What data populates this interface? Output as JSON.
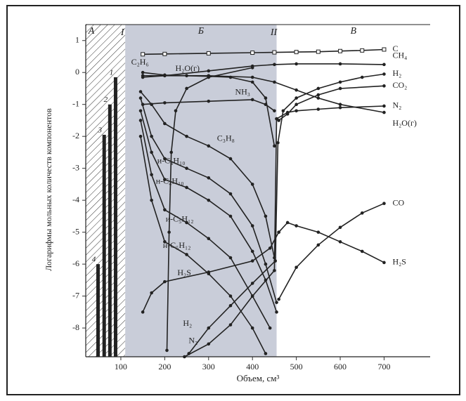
{
  "chart_data": {
    "type": "line",
    "y_label": "Логарифмы мольных количеств компонентов",
    "x_label": "Объем, см³",
    "xlim": [
      20,
      805
    ],
    "ylim": [
      -8.9,
      1.5
    ],
    "xticks": [
      100,
      200,
      300,
      400,
      500,
      600,
      700
    ],
    "yticks": [
      1,
      0,
      -1,
      -2,
      -3,
      -4,
      -5,
      -6,
      -7,
      -8
    ],
    "color": "#222222",
    "regions": [
      {
        "label": "А",
        "xlim": [
          20,
          110
        ],
        "fill": "hatch"
      },
      {
        "label": "Б",
        "xlim": [
          110,
          455
        ],
        "fill": "#c9cdd9"
      },
      {
        "label": "В",
        "xlim": [
          455,
          805
        ],
        "fill": "none"
      }
    ],
    "boundaries": [
      {
        "label": "I",
        "x": 110
      },
      {
        "label": "II",
        "x": 455
      }
    ],
    "bars": {
      "labels": [
        "4",
        "3",
        "2",
        "1"
      ],
      "x": [
        48,
        62,
        75,
        88
      ],
      "values": [
        -6,
        -1.95,
        -1,
        -0.15
      ]
    },
    "series": [
      {
        "name": "C",
        "marker": "square",
        "x": [
          150,
          200,
          300,
          400,
          450,
          500,
          550,
          600,
          650,
          700
        ],
        "values": [
          0.57,
          0.58,
          0.6,
          0.62,
          0.63,
          0.64,
          0.65,
          0.67,
          0.69,
          0.72
        ]
      },
      {
        "name": "CH₄",
        "marker": "dot",
        "x": [
          150,
          200,
          300,
          400,
          450,
          500,
          600,
          700
        ],
        "values": [
          -0.15,
          -0.1,
          0.05,
          0.2,
          0.25,
          0.27,
          0.27,
          0.25
        ]
      },
      {
        "name": "H₂",
        "marker": "dot",
        "x": [
          452,
          458,
          470,
          500,
          550,
          600,
          650,
          700
        ],
        "values": [
          -5.9,
          -2.2,
          -1.2,
          -0.8,
          -0.5,
          -0.3,
          -0.15,
          -0.05
        ]
      },
      {
        "name": "CO₂",
        "marker": "dot",
        "x": [
          460,
          480,
          500,
          550,
          600,
          700
        ],
        "values": [
          -1.5,
          -1.3,
          -1.0,
          -0.7,
          -0.5,
          -0.42
        ]
      },
      {
        "name": "N₂",
        "marker": "dot",
        "x": [
          455,
          480,
          500,
          550,
          600,
          700
        ],
        "values": [
          -1.45,
          -1.25,
          -1.2,
          -1.15,
          -1.1,
          -1.05
        ]
      },
      {
        "name": "H₂O(г)",
        "marker": "dot",
        "x": [
          150,
          200,
          300,
          400,
          450,
          500,
          550,
          600,
          700
        ],
        "values": [
          -0.1,
          -0.1,
          -0.1,
          -0.15,
          -0.3,
          -0.55,
          -0.8,
          -1.0,
          -1.25
        ]
      },
      {
        "name": "CO",
        "marker": "dot",
        "x": [
          460,
          500,
          550,
          600,
          650,
          700
        ],
        "values": [
          -7.1,
          -6.1,
          -5.4,
          -4.85,
          -4.4,
          -4.1
        ]
      },
      {
        "name": "H₂S",
        "marker": "dot",
        "x": [
          460,
          480,
          500,
          550,
          600,
          650,
          700
        ],
        "values": [
          -5.0,
          -4.7,
          -4.8,
          -5.0,
          -5.3,
          -5.6,
          -5.95
        ]
      },
      {
        "name": "C₂H₆",
        "marker": "dot",
        "x": [
          150,
          200,
          250,
          300,
          350,
          400,
          430,
          450
        ],
        "values": [
          0,
          -0.08,
          -0.1,
          -0.12,
          -0.15,
          -0.3,
          -0.8,
          -2.3
        ]
      },
      {
        "name": "H₂O(г)",
        "marker": "dot",
        "x": [
          205,
          210,
          215,
          225,
          250,
          300,
          400
        ],
        "values": [
          -8.7,
          -5,
          -2.5,
          -1.2,
          -0.5,
          -0.15,
          0.15
        ]
      },
      {
        "name": "NH₃",
        "marker": "dot",
        "x": [
          150,
          200,
          300,
          400,
          430,
          450
        ],
        "values": [
          -1.0,
          -0.95,
          -0.9,
          -0.85,
          -1.0,
          -1.2
        ]
      },
      {
        "name": "C₃H₈",
        "marker": "dot",
        "x": [
          145,
          170,
          200,
          250,
          300,
          350,
          400,
          430,
          450
        ],
        "values": [
          -0.6,
          -1.0,
          -1.6,
          -2.0,
          -2.3,
          -2.7,
          -3.5,
          -4.5,
          -5.8
        ]
      },
      {
        "name": "и-C₄H₁₀",
        "marker": "dot",
        "x": [
          145,
          170,
          200,
          250,
          300,
          350,
          400,
          430,
          455
        ],
        "values": [
          -0.8,
          -2.0,
          -2.7,
          -3.0,
          -3.3,
          -3.8,
          -4.8,
          -6.0,
          -7.2
        ]
      },
      {
        "name": "н-C₄H₁₀",
        "marker": "dot",
        "x": [
          145,
          170,
          200,
          250,
          300,
          350,
          400,
          430,
          455
        ],
        "values": [
          -1.2,
          -2.5,
          -3.35,
          -3.6,
          -4.0,
          -4.5,
          -5.6,
          -6.5,
          -7.5
        ]
      },
      {
        "name": "и-C₅H₁₂",
        "marker": "dot",
        "x": [
          145,
          170,
          200,
          250,
          300,
          350,
          400,
          440
        ],
        "values": [
          -1.5,
          -3.2,
          -4.3,
          -4.7,
          -5.2,
          -5.8,
          -7.0,
          -8.0
        ]
      },
      {
        "name": "н-C₅H₁₂",
        "marker": "dot",
        "x": [
          145,
          170,
          200,
          250,
          300,
          350,
          400,
          430
        ],
        "values": [
          -2.0,
          -4.0,
          -5.3,
          -5.7,
          -6.3,
          -7.0,
          -8.0,
          -8.8
        ]
      },
      {
        "name": "H₂S",
        "marker": "dot",
        "x": [
          150,
          170,
          200,
          300,
          400,
          440,
          460
        ],
        "values": [
          -7.5,
          -6.9,
          -6.55,
          -6.25,
          -5.9,
          -5.5,
          -5.0
        ]
      },
      {
        "name": "H₂",
        "marker": "dot",
        "x": [
          255,
          300,
          350,
          400,
          452
        ],
        "values": [
          -8.8,
          -8.0,
          -7.3,
          -6.6,
          -5.9
        ]
      },
      {
        "name": "N₂",
        "marker": "dot",
        "x": [
          245,
          300,
          350,
          400,
          450,
          455
        ],
        "values": [
          -8.9,
          -8.5,
          -7.9,
          -7.0,
          -6.2,
          -1.45
        ]
      }
    ]
  }
}
